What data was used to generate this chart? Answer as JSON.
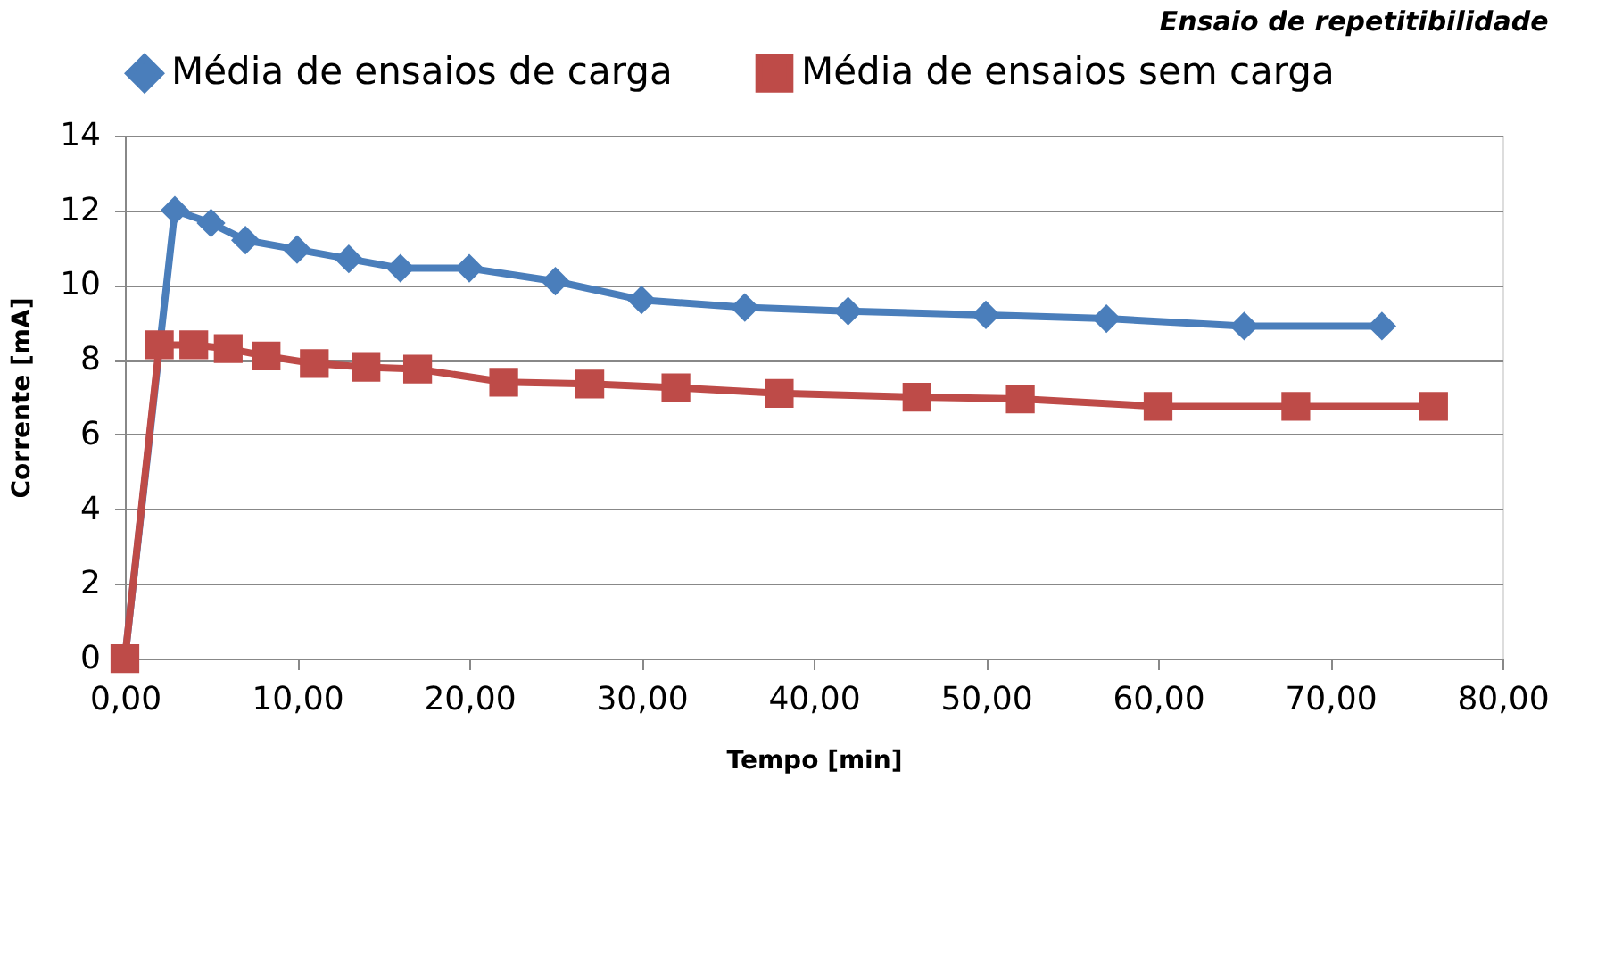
{
  "chart_data": {
    "type": "line",
    "title": "Ensaio de repetitibilidade",
    "xlabel": "Tempo [min]",
    "ylabel": "Corrente [mA]",
    "xlim": [
      0,
      80
    ],
    "xticks": [
      {
        "value": 0,
        "label": "0,00"
      },
      {
        "value": 10,
        "label": "10,00"
      },
      {
        "value": 20,
        "label": "20,00"
      },
      {
        "value": 30,
        "label": "30,00"
      },
      {
        "value": 40,
        "label": "40,00"
      },
      {
        "value": 50,
        "label": "50,00"
      },
      {
        "value": 60,
        "label": "60,00"
      },
      {
        "value": 70,
        "label": "70,00"
      },
      {
        "value": 80,
        "label": "80,00"
      }
    ],
    "ylim": [
      0,
      14
    ],
    "yticks": [
      0,
      2,
      4,
      6,
      8,
      10,
      12,
      14
    ],
    "grid": "y",
    "legend": "top",
    "line_style": "solid",
    "series": [
      {
        "name": "Média de ensaios de carga",
        "color": "#4a7ebb",
        "marker": "diamond",
        "x": [
          0,
          2.9,
          5,
          7,
          10,
          13,
          16,
          20,
          25,
          30,
          36,
          42,
          50,
          57,
          65,
          73
        ],
        "values": [
          0,
          12.0,
          11.66,
          11.2,
          10.95,
          10.7,
          10.45,
          10.45,
          10.1,
          9.6,
          9.4,
          9.3,
          9.2,
          9.1,
          8.9,
          8.9
        ]
      },
      {
        "name": "Média de ensaios sem carga",
        "color": "#be4b48",
        "marker": "square",
        "x": [
          0,
          2,
          4,
          6,
          8.2,
          11,
          14,
          17,
          22,
          27,
          32,
          38,
          46,
          52,
          60,
          68,
          76
        ],
        "values": [
          0,
          8.4,
          8.4,
          8.3,
          8.1,
          7.9,
          7.8,
          7.75,
          7.4,
          7.35,
          7.25,
          7.1,
          7.0,
          6.95,
          6.75,
          6.75,
          6.75
        ]
      }
    ]
  }
}
